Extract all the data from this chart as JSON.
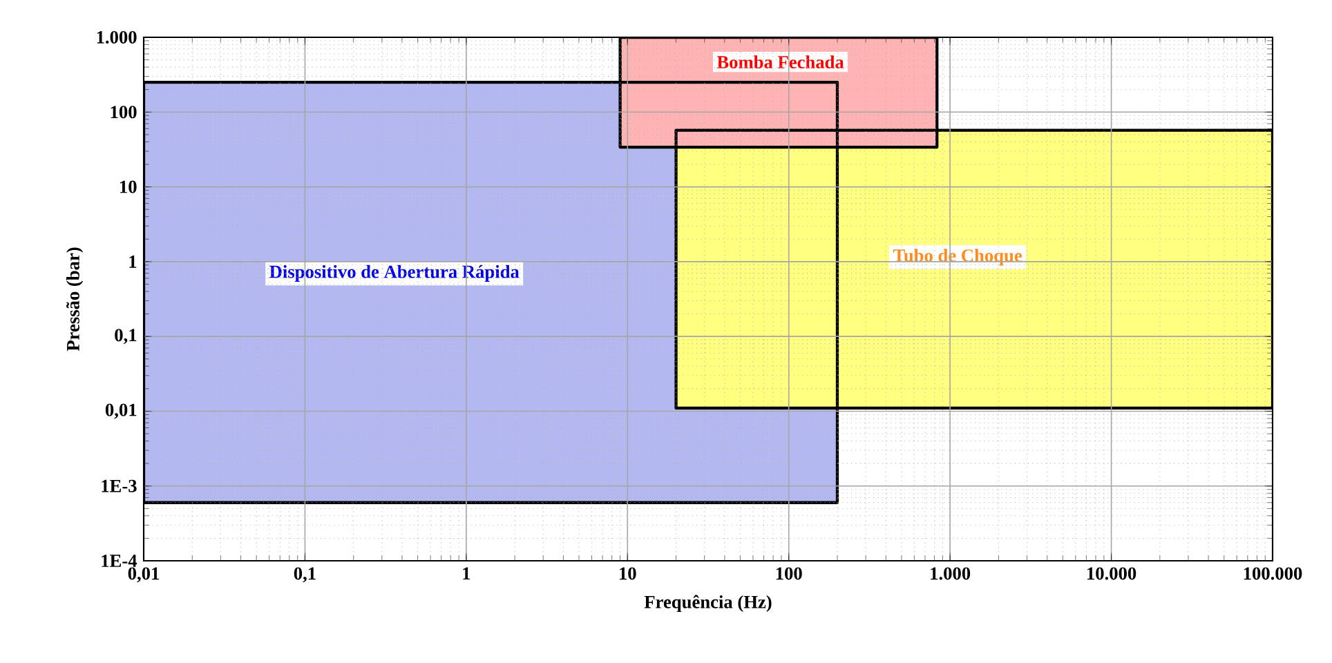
{
  "chart_data": {
    "type": "area",
    "xlabel": "Frequência (Hz)",
    "ylabel": "Pressão (bar)",
    "log": "xy",
    "grid": true,
    "xlim": [
      0.01,
      100000
    ],
    "ylim": [
      0.0001,
      1000
    ],
    "xticks": [
      {
        "value": 0.01,
        "label": "0,01"
      },
      {
        "value": 0.1,
        "label": "0,1"
      },
      1,
      10,
      100,
      {
        "value": 1000,
        "label": "1.000"
      },
      {
        "value": 10000,
        "label": "10.000"
      },
      {
        "value": 100000,
        "label": "100.000"
      }
    ],
    "yticks": [
      {
        "value": 0.0001,
        "label": "1E-4"
      },
      {
        "value": 0.001,
        "label": "1E-3"
      },
      {
        "value": 0.01,
        "label": "0,01"
      },
      {
        "value": 0.1,
        "label": "0,1"
      },
      1,
      10,
      100,
      {
        "value": 1000,
        "label": "1.000"
      }
    ],
    "series": [
      {
        "color": "#b3b8f0",
        "x": [
          0.01,
          0.01,
          200,
          200,
          0.01
        ],
        "values": [
          0.0006,
          250,
          250,
          0.0006,
          0.0006
        ]
      },
      {
        "color": "#ffff80",
        "x": [
          20,
          20,
          100000,
          100000,
          20
        ],
        "values": [
          0.011,
          57,
          57,
          0.011,
          0.011
        ]
      },
      {
        "color": "#ffb3b3",
        "x": [
          9,
          9,
          830,
          830,
          9
        ],
        "values": [
          34,
          1000,
          1000,
          34,
          34
        ]
      }
    ],
    "annotations": [
      "Dispositivo de Abertura Rápida",
      "Bomba Fechada",
      "Tubo de Choque"
    ]
  }
}
